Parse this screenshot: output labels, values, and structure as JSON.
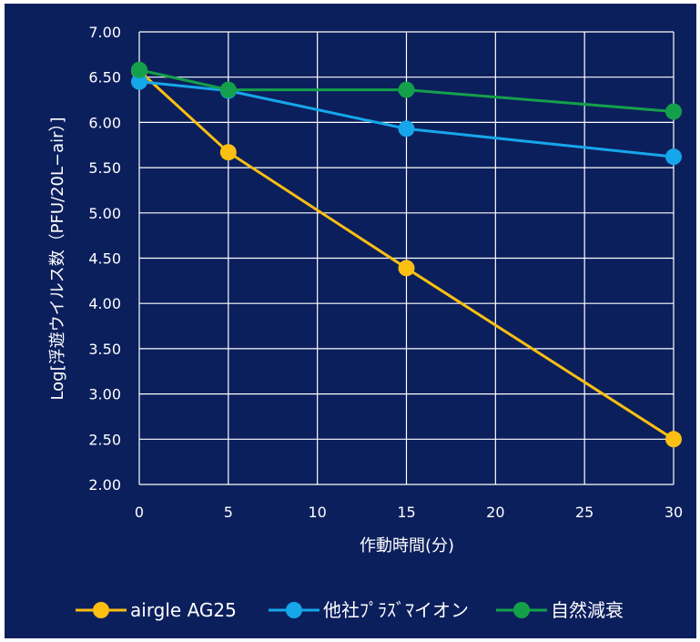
{
  "chart_data": {
    "type": "line",
    "x": [
      0,
      5,
      15,
      30
    ],
    "xlabel": "作動時間(分)",
    "ylabel": "Log[浮遊ウイルス数（PFU/20L−air）]",
    "xlim": [
      0,
      30
    ],
    "ylim": [
      2.0,
      7.0
    ],
    "xticks": [
      "0",
      "5",
      "10",
      "15",
      "20",
      "25",
      "30"
    ],
    "yticks": [
      "2.00",
      "2.50",
      "3.00",
      "3.50",
      "4.00",
      "4.50",
      "5.00",
      "5.50",
      "6.00",
      "6.50",
      "7.00"
    ],
    "grid": true,
    "legend_position": "bottom",
    "series": [
      {
        "name": "airgle AG25",
        "color": "#fbbf12",
        "values": [
          6.57,
          5.67,
          4.39,
          2.5
        ]
      },
      {
        "name": "他社ﾌﾟﾗｽﾞﾏイオン",
        "color": "#16a6ea",
        "values": [
          6.45,
          6.35,
          5.93,
          5.62
        ]
      },
      {
        "name": "自然減衰",
        "color": "#14a04a",
        "values": [
          6.58,
          6.36,
          6.36,
          6.12
        ]
      }
    ]
  },
  "colors": {
    "background": "#0b1f5c",
    "grid": "#ffffff",
    "text": "#ffffff"
  }
}
